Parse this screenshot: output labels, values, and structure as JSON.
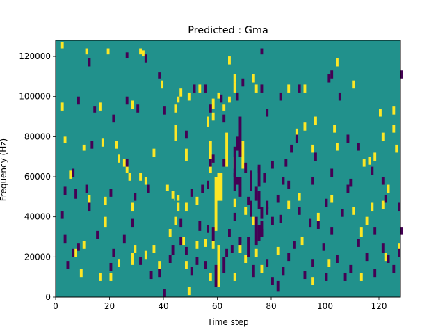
{
  "chart_data": {
    "type": "heatmap",
    "title": "Predicted : Gma",
    "xlabel": "Time step",
    "ylabel": "Frequency (Hz)",
    "xlim": [
      0,
      128
    ],
    "ylim": [
      0,
      128000
    ],
    "x_ticks": [
      0,
      20,
      40,
      60,
      80,
      100,
      120
    ],
    "y_ticks": [
      0,
      20000,
      40000,
      60000,
      80000,
      100000,
      120000
    ],
    "x_tick_labels": [
      "0",
      "20",
      "40",
      "60",
      "80",
      "100",
      "120"
    ],
    "y_tick_labels": [
      "0",
      "20000",
      "40000",
      "60000",
      "80000",
      "100000",
      "120000"
    ],
    "n_time_bins": 128,
    "n_freq_bins": 128,
    "freq_bin_hz": 1000,
    "colormap": "viridis",
    "value_levels": [
      -1,
      0,
      1
    ],
    "background_value": 0,
    "colors": {
      "low": "#440154",
      "mid": "#21918c",
      "high": "#fde725"
    },
    "cells_high": [
      [
        2,
        124,
        127
      ],
      [
        11,
        121,
        124
      ],
      [
        19,
        121,
        124
      ],
      [
        31,
        121,
        124
      ],
      [
        32,
        120,
        123
      ],
      [
        64,
        116,
        120
      ],
      [
        66,
        107,
        111
      ],
      [
        73,
        107,
        111
      ],
      [
        60,
        99,
        102
      ],
      [
        64,
        97,
        100
      ],
      [
        62,
        93,
        96
      ],
      [
        58,
        94,
        99
      ],
      [
        46,
        100,
        104
      ],
      [
        49,
        98,
        102
      ],
      [
        53,
        102,
        106
      ],
      [
        45,
        97,
        100
      ],
      [
        44,
        92,
        96
      ],
      [
        66,
        102,
        107
      ],
      [
        74,
        102,
        106
      ],
      [
        86,
        102,
        106
      ],
      [
        2,
        93,
        97
      ],
      [
        28,
        94,
        98
      ],
      [
        16,
        93,
        97
      ],
      [
        56,
        85,
        90
      ],
      [
        58,
        88,
        92
      ],
      [
        39,
        104,
        108
      ],
      [
        92,
        102,
        106
      ],
      [
        104,
        115,
        119
      ],
      [
        110,
        104,
        108
      ],
      [
        120,
        90,
        94
      ],
      [
        125,
        91,
        95
      ],
      [
        3,
        77,
        80
      ],
      [
        10,
        73,
        76
      ],
      [
        17,
        75,
        79
      ],
      [
        22,
        74,
        78
      ],
      [
        23,
        67,
        71
      ],
      [
        25,
        65,
        69
      ],
      [
        26,
        62,
        66
      ],
      [
        27,
        58,
        62
      ],
      [
        31,
        58,
        62
      ],
      [
        33,
        56,
        60
      ],
      [
        36,
        70,
        74
      ],
      [
        44,
        78,
        86
      ],
      [
        48,
        68,
        74
      ],
      [
        57,
        62,
        78
      ],
      [
        63,
        65,
        82
      ],
      [
        66,
        64,
        70
      ],
      [
        69,
        64,
        78
      ],
      [
        89,
        80,
        84
      ],
      [
        92,
        83,
        87
      ],
      [
        95,
        72,
        76
      ],
      [
        96,
        86,
        90
      ],
      [
        103,
        82,
        86
      ],
      [
        104,
        73,
        77
      ],
      [
        114,
        65,
        69
      ],
      [
        116,
        66,
        70
      ],
      [
        118,
        68,
        72
      ],
      [
        121,
        78,
        82
      ],
      [
        125,
        82,
        86
      ],
      [
        126,
        72,
        76
      ],
      [
        5,
        59,
        63
      ],
      [
        12,
        47,
        51
      ],
      [
        18,
        46,
        50
      ],
      [
        28,
        43,
        47
      ],
      [
        41,
        53,
        56
      ],
      [
        43,
        49,
        53
      ],
      [
        45,
        43,
        47
      ],
      [
        48,
        43,
        47
      ],
      [
        52,
        46,
        50
      ],
      [
        66,
        45,
        49
      ],
      [
        70,
        41,
        45
      ],
      [
        86,
        44,
        48
      ],
      [
        90,
        48,
        52
      ],
      [
        97,
        38,
        42
      ],
      [
        102,
        47,
        51
      ],
      [
        110,
        41,
        45
      ],
      [
        113,
        30,
        35
      ],
      [
        115,
        36,
        40
      ],
      [
        117,
        43,
        47
      ],
      [
        121,
        44,
        48
      ],
      [
        123,
        52,
        56
      ],
      [
        7,
        20,
        24
      ],
      [
        9,
        10,
        14
      ],
      [
        10,
        24,
        28
      ],
      [
        18,
        35,
        40
      ],
      [
        16,
        8,
        12
      ],
      [
        20,
        8,
        12
      ],
      [
        23,
        15,
        19
      ],
      [
        28,
        16,
        22
      ],
      [
        29,
        22,
        26
      ],
      [
        33,
        19,
        23
      ],
      [
        36,
        22,
        26
      ],
      [
        38,
        14,
        18
      ],
      [
        42,
        30,
        34
      ],
      [
        44,
        36,
        40
      ],
      [
        47,
        26,
        30
      ],
      [
        48,
        14,
        18
      ],
      [
        49,
        1,
        5
      ],
      [
        52,
        24,
        28
      ],
      [
        55,
        25,
        29
      ],
      [
        57,
        8,
        12
      ],
      [
        60,
        5,
        26
      ],
      [
        58,
        24,
        28
      ],
      [
        66,
        8,
        12
      ],
      [
        68,
        22,
        27
      ],
      [
        70,
        17,
        21
      ],
      [
        73,
        36,
        40
      ],
      [
        74,
        20,
        24
      ],
      [
        76,
        12,
        16
      ],
      [
        82,
        21,
        25
      ],
      [
        91,
        26,
        30
      ],
      [
        95,
        6,
        10
      ],
      [
        101,
        15,
        19
      ],
      [
        113,
        8,
        12
      ],
      [
        122,
        18,
        22
      ],
      [
        127,
        23,
        27
      ]
    ],
    "cells_high_wide": [
      [
        44,
        42,
        48,
        49,
        56
      ],
      [
        45,
        46,
        48,
        51,
        63
      ],
      [
        47,
        44,
        51,
        28,
        47
      ],
      [
        59,
        60,
        64,
        4,
        74
      ],
      [
        61,
        58,
        61,
        16,
        30
      ],
      [
        59,
        60,
        33,
        60,
        4
      ],
      [
        60,
        62,
        48,
        62,
        26
      ]
    ],
    "cells_low": [
      [
        26,
        119,
        122
      ],
      [
        33,
        117,
        121
      ],
      [
        38,
        109,
        112
      ],
      [
        12,
        115,
        119
      ],
      [
        76,
        121,
        124
      ],
      [
        83,
        98,
        102
      ],
      [
        101,
        107,
        111
      ],
      [
        102,
        109,
        113
      ],
      [
        105,
        98,
        102
      ],
      [
        128,
        109,
        113
      ],
      [
        90,
        102,
        106
      ],
      [
        78,
        90,
        94
      ],
      [
        76,
        102,
        106
      ],
      [
        69,
        105,
        109
      ],
      [
        8,
        96,
        100
      ],
      [
        14,
        92,
        95
      ],
      [
        21,
        87,
        91
      ],
      [
        26,
        96,
        100
      ],
      [
        30,
        92,
        96
      ],
      [
        40,
        91,
        95
      ],
      [
        48,
        79,
        83
      ],
      [
        51,
        102,
        106
      ],
      [
        55,
        102,
        106
      ],
      [
        67,
        98,
        102
      ],
      [
        57,
        92,
        96
      ],
      [
        61,
        97,
        101
      ],
      [
        62,
        87,
        91
      ],
      [
        68,
        70,
        90
      ],
      [
        67,
        73,
        80
      ],
      [
        70,
        62,
        67
      ],
      [
        72,
        53,
        63
      ],
      [
        74,
        48,
        55
      ],
      [
        75,
        44,
        53
      ],
      [
        76,
        39,
        45
      ],
      [
        78,
        41,
        45
      ],
      [
        80,
        36,
        40
      ],
      [
        84,
        56,
        60
      ],
      [
        83,
        37,
        41
      ],
      [
        86,
        54,
        58
      ],
      [
        90,
        41,
        45
      ],
      [
        94,
        35,
        39
      ],
      [
        97,
        34,
        38
      ],
      [
        100,
        45,
        49
      ],
      [
        106,
        40,
        44
      ],
      [
        108,
        52,
        56
      ],
      [
        118,
        31,
        35
      ],
      [
        122,
        47,
        51
      ],
      [
        127,
        43,
        47
      ],
      [
        2,
        39,
        43
      ],
      [
        3,
        51,
        55
      ],
      [
        6,
        60,
        64
      ],
      [
        7,
        49,
        54
      ],
      [
        11,
        52,
        56
      ],
      [
        13,
        74,
        78
      ],
      [
        20,
        50,
        54
      ],
      [
        26,
        65,
        69
      ],
      [
        29,
        48,
        52
      ],
      [
        34,
        52,
        56
      ],
      [
        46,
        35,
        39
      ],
      [
        50,
        50,
        54
      ],
      [
        54,
        52,
        56
      ],
      [
        56,
        54,
        58
      ],
      [
        57,
        65,
        69
      ],
      [
        58,
        67,
        71
      ],
      [
        62,
        65,
        69
      ],
      [
        66,
        53,
        62
      ],
      [
        67,
        56,
        60
      ],
      [
        71,
        46,
        50
      ],
      [
        72,
        40,
        48
      ],
      [
        74,
        26,
        40
      ],
      [
        75,
        28,
        36
      ],
      [
        76,
        30,
        34
      ],
      [
        78,
        44,
        48
      ],
      [
        80,
        64,
        68
      ],
      [
        82,
        47,
        51
      ],
      [
        85,
        65,
        69
      ],
      [
        87,
        72,
        76
      ],
      [
        89,
        77,
        81
      ],
      [
        95,
        56,
        60
      ],
      [
        96,
        68,
        72
      ],
      [
        102,
        60,
        64
      ],
      [
        108,
        77,
        81
      ],
      [
        109,
        55,
        59
      ],
      [
        112,
        73,
        77
      ],
      [
        117,
        61,
        65
      ],
      [
        121,
        56,
        60
      ],
      [
        128,
        31,
        35
      ],
      [
        127,
        20,
        24
      ],
      [
        125,
        12,
        16
      ],
      [
        3,
        27,
        31
      ],
      [
        4,
        14,
        18
      ],
      [
        6,
        20,
        24
      ],
      [
        8,
        23,
        27
      ],
      [
        12,
        43,
        47
      ],
      [
        15,
        29,
        33
      ],
      [
        20,
        13,
        17
      ],
      [
        21,
        20,
        24
      ],
      [
        25,
        27,
        31
      ],
      [
        28,
        35,
        39
      ],
      [
        31,
        16,
        20
      ],
      [
        35,
        9,
        13
      ],
      [
        38,
        10,
        14
      ],
      [
        40,
        0,
        4
      ],
      [
        42,
        17,
        21
      ],
      [
        43,
        21,
        26
      ],
      [
        46,
        26,
        30
      ],
      [
        48,
        21,
        25
      ],
      [
        50,
        11,
        15
      ],
      [
        52,
        16,
        20
      ],
      [
        53,
        33,
        38
      ],
      [
        55,
        14,
        18
      ],
      [
        56,
        32,
        36
      ],
      [
        58,
        28,
        35
      ],
      [
        59,
        5,
        16
      ],
      [
        62,
        12,
        20
      ],
      [
        63,
        20,
        24
      ],
      [
        64,
        30,
        34
      ],
      [
        65,
        22,
        26
      ],
      [
        66,
        38,
        42
      ],
      [
        68,
        26,
        30
      ],
      [
        71,
        20,
        30
      ],
      [
        73,
        10,
        16
      ],
      [
        76,
        30,
        38
      ],
      [
        78,
        15,
        19
      ],
      [
        80,
        6,
        10
      ],
      [
        82,
        3,
        8
      ],
      [
        84,
        11,
        15
      ],
      [
        86,
        18,
        22
      ],
      [
        88,
        24,
        28
      ],
      [
        92,
        9,
        13
      ],
      [
        95,
        15,
        19
      ],
      [
        99,
        23,
        27
      ],
      [
        102,
        31,
        35
      ],
      [
        104,
        17,
        21
      ],
      [
        107,
        8,
        12
      ],
      [
        109,
        12,
        16
      ],
      [
        112,
        25,
        29
      ],
      [
        115,
        18,
        22
      ],
      [
        118,
        10,
        14
      ],
      [
        121,
        22,
        27
      ],
      [
        123,
        17,
        21
      ],
      [
        100,
        8,
        12
      ],
      [
        66,
        60,
        75
      ],
      [
        68,
        50,
        60
      ],
      [
        75,
        55,
        65
      ],
      [
        77,
        57,
        62
      ],
      [
        75,
        62,
        66
      ]
    ]
  }
}
